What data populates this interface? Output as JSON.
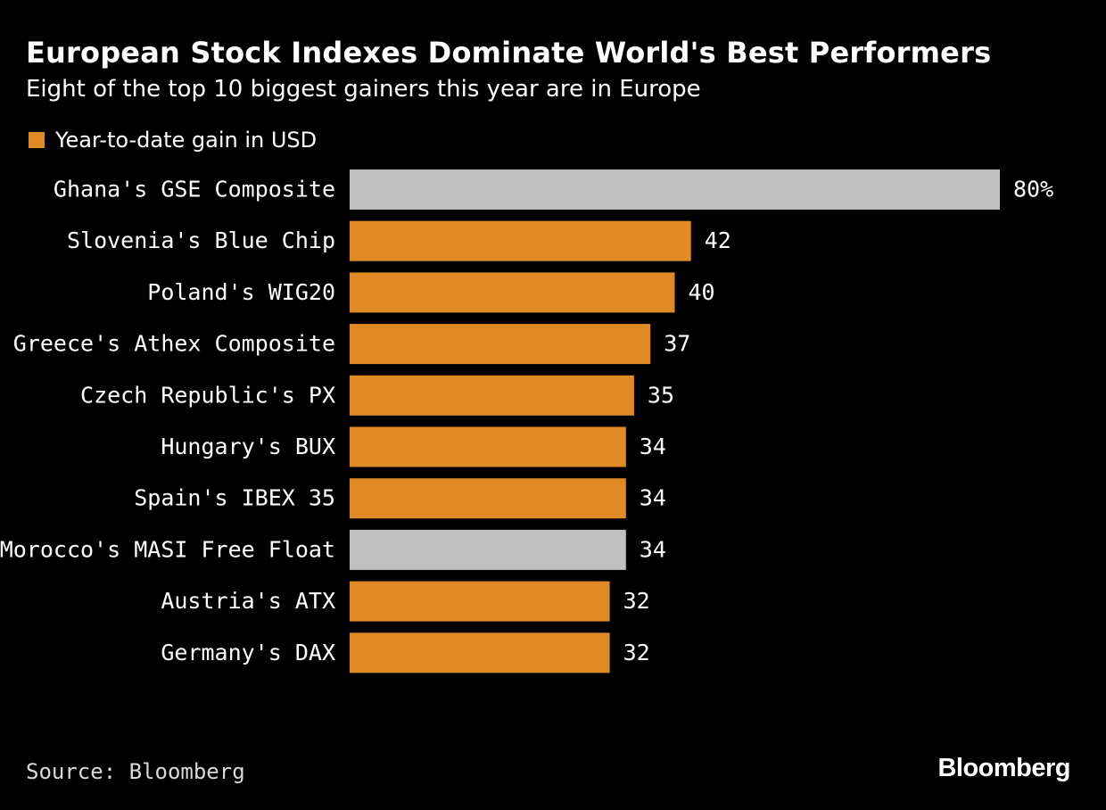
{
  "chart_data": {
    "type": "bar",
    "orientation": "horizontal",
    "title": "European Stock Indexes Dominate World's Best Performers",
    "subtitle": "Eight of the top 10 biggest gainers this year are in Europe",
    "legend": [
      {
        "label": "Year-to-date gain in USD",
        "color": "#e08a25"
      }
    ],
    "categories": [
      "Ghana's GSE Composite",
      "Slovenia's Blue Chip",
      "Poland's WIG20",
      "Greece's Athex Composite",
      "Czech Republic's PX",
      "Hungary's BUX",
      "Spain's IBEX 35",
      "Morocco's MASI Free Float",
      "Austria's ATX",
      "Germany's DAX"
    ],
    "values": [
      80,
      42,
      40,
      37,
      35,
      34,
      34,
      34,
      32,
      32
    ],
    "value_labels": [
      "80%",
      "42",
      "40",
      "37",
      "35",
      "34",
      "34",
      "34",
      "32",
      "32"
    ],
    "highlight": [
      false,
      true,
      true,
      true,
      true,
      true,
      true,
      false,
      true,
      true
    ],
    "colors": {
      "highlight": "#e08a25",
      "other": "#c0c0c0"
    },
    "xlim": [
      0,
      80
    ],
    "xlabel": "",
    "ylabel": "",
    "grid": false,
    "source": "Source: Bloomberg",
    "brand": "Bloomberg"
  }
}
